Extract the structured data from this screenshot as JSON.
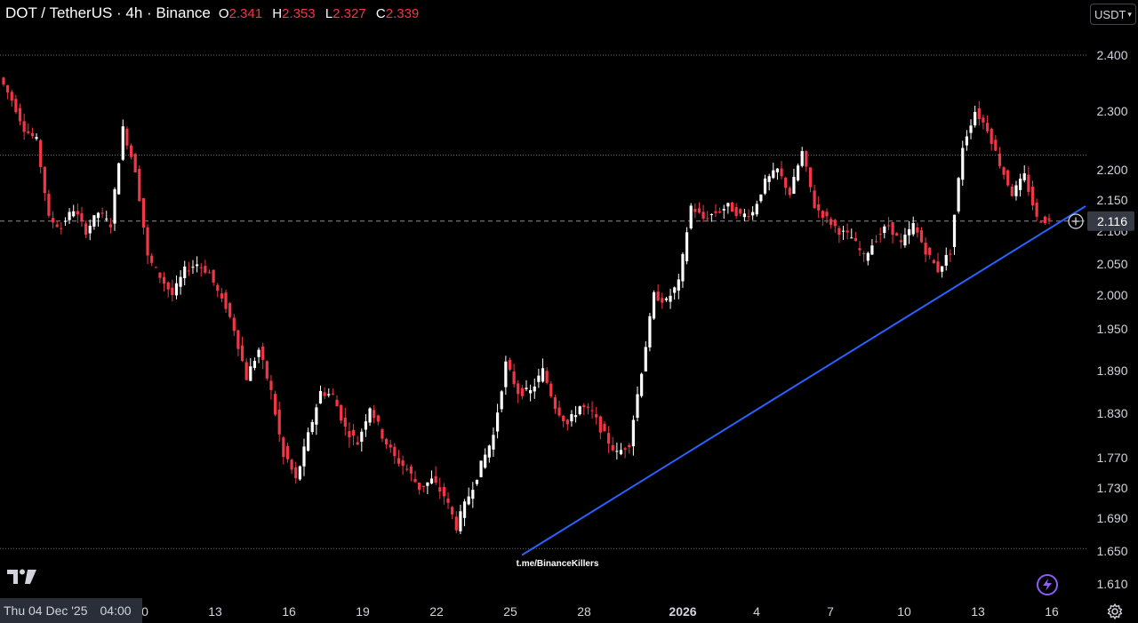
{
  "header": {
    "title": "DOT / TetherUS · 4h · Binance",
    "ohlc": [
      {
        "key": "O",
        "value": "2.341"
      },
      {
        "key": "H",
        "value": "2.353"
      },
      {
        "key": "L",
        "value": "2.327"
      },
      {
        "key": "C",
        "value": "2.339"
      }
    ]
  },
  "currency": {
    "label": "USDT",
    "icon": "chevron-down-icon"
  },
  "watermark": "t.me/BinanceKillers",
  "date_badge": {
    "date": "Thu 04 Dec '25",
    "time": "04:00"
  },
  "price_badge": "2.116",
  "colors": {
    "background": "#000000",
    "up": "#ffffff",
    "down": "#f23645",
    "trendline": "#2962ff",
    "text": "#d1d4dc",
    "accent_purple": "#8e5cf7"
  },
  "icons": {
    "logo": "tradingview-logo-icon",
    "plus": "plus-circle-icon",
    "bolt": "lightning-bolt-icon",
    "settings": "gear-icon"
  },
  "chart_data": {
    "type": "candlestick",
    "title": "DOT / TetherUS · 4h · Binance",
    "y_axis": {
      "tick_labels": [
        "2.400",
        "2.300",
        "2.200",
        "2.150",
        "2.100",
        "2.050",
        "2.000",
        "1.950",
        "1.890",
        "1.830",
        "1.770",
        "1.730",
        "1.690",
        "1.650",
        "1.610"
      ],
      "tick_values": [
        2.4,
        2.3,
        2.2,
        2.15,
        2.1,
        2.05,
        2.0,
        1.95,
        1.89,
        1.83,
        1.77,
        1.73,
        1.69,
        1.65,
        1.61
      ]
    },
    "x_axis": {
      "tick_labels": [
        "0",
        "13",
        "16",
        "19",
        "22",
        "25",
        "28",
        "2026",
        "4",
        "7",
        "10",
        "13",
        "16"
      ]
    },
    "current_price": 2.116,
    "horizontal_levels": [
      2.4,
      2.225,
      1.653
    ],
    "trendline": {
      "from": {
        "x": "25",
        "y": 1.645
      },
      "to": {
        "x": "16",
        "y": 2.14
      }
    },
    "price_path": [
      [
        2.36,
        2.32
      ],
      [
        2.32,
        2.27
      ],
      [
        2.27,
        2.25
      ],
      [
        2.25,
        2.12
      ],
      [
        2.12,
        2.105
      ],
      [
        2.11,
        2.135
      ],
      [
        2.135,
        2.1
      ],
      [
        2.1,
        2.13
      ],
      [
        2.13,
        2.11
      ],
      [
        2.11,
        2.27
      ],
      [
        2.27,
        2.2
      ],
      [
        2.2,
        2.06
      ],
      [
        2.06,
        2.03
      ],
      [
        2.03,
        2.0
      ],
      [
        2.0,
        2.04
      ],
      [
        2.04,
        2.05
      ],
      [
        2.05,
        2.035
      ],
      [
        2.035,
        1.99
      ],
      [
        2.0,
        1.95
      ],
      [
        1.95,
        1.88
      ],
      [
        1.88,
        1.92
      ],
      [
        1.92,
        1.86
      ],
      [
        1.86,
        1.77
      ],
      [
        1.78,
        1.74
      ],
      [
        1.74,
        1.8
      ],
      [
        1.8,
        1.86
      ],
      [
        1.86,
        1.855
      ],
      [
        1.855,
        1.81
      ],
      [
        1.81,
        1.79
      ],
      [
        1.79,
        1.84
      ],
      [
        1.84,
        1.8
      ],
      [
        1.8,
        1.77
      ],
      [
        1.77,
        1.755
      ],
      [
        1.755,
        1.73
      ],
      [
        1.73,
        1.74
      ],
      [
        1.74,
        1.72
      ],
      [
        1.72,
        1.68
      ],
      [
        1.68,
        1.72
      ],
      [
        1.72,
        1.76
      ],
      [
        1.76,
        1.8
      ],
      [
        1.8,
        1.9
      ],
      [
        1.9,
        1.86
      ],
      [
        1.86,
        1.86
      ],
      [
        1.86,
        1.89
      ],
      [
        1.89,
        1.84
      ],
      [
        1.84,
        1.815
      ],
      [
        1.815,
        1.84
      ],
      [
        1.84,
        1.83
      ],
      [
        1.83,
        1.8
      ],
      [
        1.8,
        1.775
      ],
      [
        1.775,
        1.79
      ],
      [
        1.79,
        1.89
      ],
      [
        1.89,
        2.0
      ],
      [
        2.0,
        1.99
      ],
      [
        1.99,
        2.02
      ],
      [
        2.02,
        2.14
      ],
      [
        2.14,
        2.12
      ],
      [
        2.12,
        2.13
      ],
      [
        2.13,
        2.14
      ],
      [
        2.14,
        2.125
      ],
      [
        2.125,
        2.13
      ],
      [
        2.13,
        2.18
      ],
      [
        2.18,
        2.2
      ],
      [
        2.2,
        2.16
      ],
      [
        2.16,
        2.23
      ],
      [
        2.23,
        2.14
      ],
      [
        2.14,
        2.12
      ],
      [
        2.12,
        2.1
      ],
      [
        2.1,
        2.09
      ],
      [
        2.09,
        2.06
      ],
      [
        2.06,
        2.09
      ],
      [
        2.09,
        2.11
      ],
      [
        2.11,
        2.08
      ],
      [
        2.08,
        2.11
      ],
      [
        2.11,
        2.07
      ],
      [
        2.07,
        2.04
      ],
      [
        2.04,
        2.07
      ],
      [
        2.07,
        2.24
      ],
      [
        2.24,
        2.3
      ],
      [
        2.3,
        2.27
      ],
      [
        2.27,
        2.21
      ],
      [
        2.21,
        2.16
      ],
      [
        2.16,
        2.19
      ],
      [
        2.19,
        2.12
      ],
      [
        2.12,
        2.116
      ]
    ]
  }
}
